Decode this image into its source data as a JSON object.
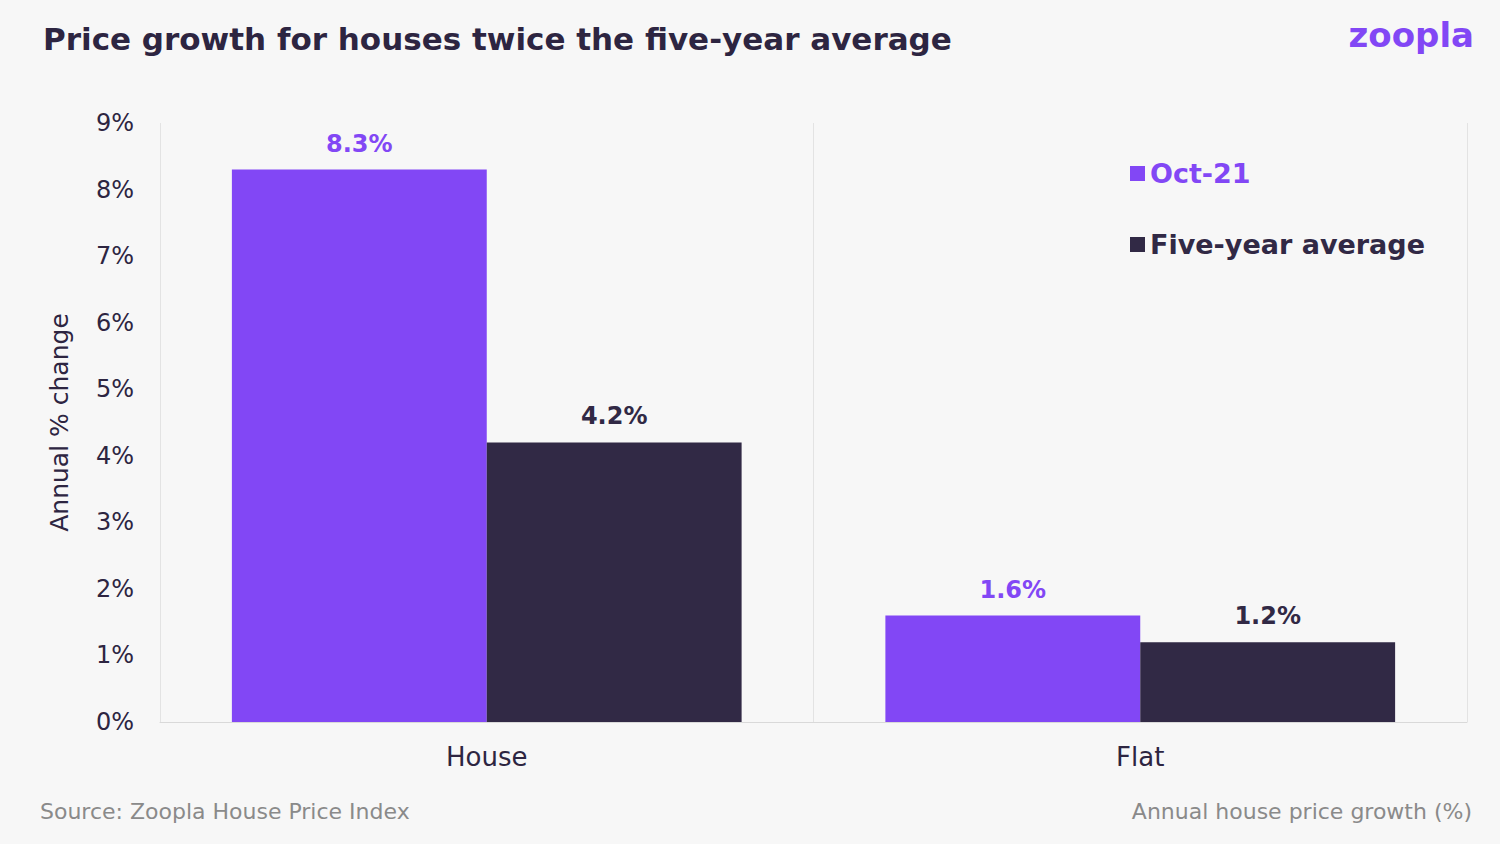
{
  "chart_data": {
    "type": "bar",
    "title": "Price growth for houses twice the five-year average",
    "brand": "zoopla",
    "source": "Source: Zoopla House Price Index",
    "note": "Annual house price growth (%)",
    "y_label": "Annual % change",
    "categories": [
      "House",
      "Flat"
    ],
    "series": [
      {
        "name": "Oct-21",
        "color": "#8247f5",
        "values": [
          8.3,
          1.6
        ],
        "value_labels": [
          "8.3%",
          "1.6%"
        ]
      },
      {
        "name": "Five-year average",
        "color": "#312945",
        "values": [
          4.2,
          1.2
        ],
        "value_labels": [
          "4.2%",
          "1.2%"
        ]
      }
    ],
    "ylim": [
      0,
      9
    ],
    "yticks": [
      {
        "value": 0,
        "label": "0%"
      },
      {
        "value": 1,
        "label": "1%"
      },
      {
        "value": 2,
        "label": "2%"
      },
      {
        "value": 3,
        "label": "3%"
      },
      {
        "value": 4,
        "label": "4%"
      },
      {
        "value": 5,
        "label": "5%"
      },
      {
        "value": 6,
        "label": "6%"
      },
      {
        "value": 7,
        "label": "7%"
      },
      {
        "value": 8,
        "label": "8%"
      },
      {
        "value": 9,
        "label": "9%"
      }
    ],
    "grid": true,
    "legend": "top-right",
    "data_labels": true
  }
}
